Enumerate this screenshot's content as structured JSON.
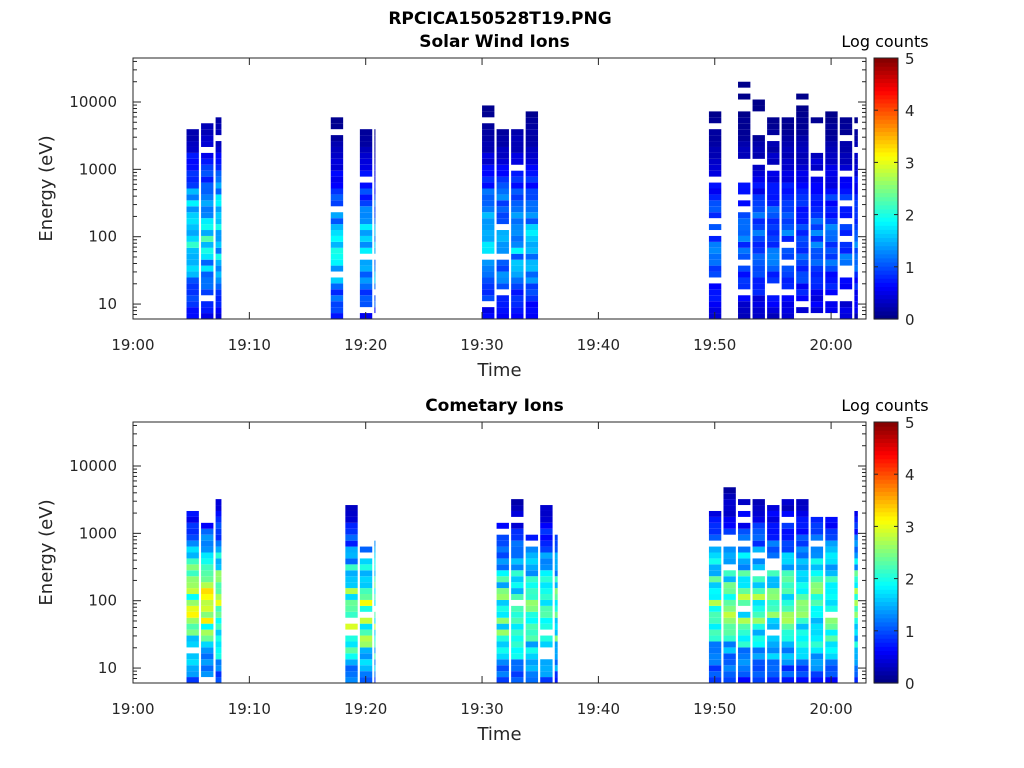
{
  "figure_title": "RPCICA150528T19.PNG",
  "chart_data": [
    {
      "type": "heatmap",
      "title": "Solar Wind Ions",
      "xlabel": "Time",
      "ylabel": "Energy (eV)",
      "yscale": "log",
      "xlim": [
        "19:00",
        "20:03"
      ],
      "ylim": [
        6,
        45000
      ],
      "xticks": [
        "19:00",
        "19:10",
        "19:20",
        "19:30",
        "19:40",
        "19:50",
        "20:00"
      ],
      "yticks": [
        "10",
        "100",
        "1000",
        "10000"
      ],
      "colorbar": {
        "label": "Log counts",
        "range": [
          0,
          5
        ],
        "ticks": [
          "0",
          "1",
          "2",
          "3",
          "4",
          "5"
        ],
        "colormap": "jet"
      },
      "bursts": [
        {
          "start_min": 4.6,
          "end_min": 7.6,
          "max_energy_ev": 6000,
          "peak_log_counts": 2.3,
          "peak_energy_ev": 100
        },
        {
          "start_min": 17.0,
          "end_min": 20.8,
          "max_energy_ev": 9000,
          "peak_log_counts": 2.0,
          "peak_energy_ev": 60
        },
        {
          "start_min": 30.0,
          "end_min": 36.5,
          "max_energy_ev": 9000,
          "peak_log_counts": 1.9,
          "peak_energy_ev": 80
        },
        {
          "start_min": 49.5,
          "end_min": 62.3,
          "max_energy_ev": 20000,
          "peak_log_counts": 1.4,
          "peak_energy_ev": 80
        }
      ],
      "grid": false
    },
    {
      "type": "heatmap",
      "title": "Cometary Ions",
      "xlabel": "Time",
      "ylabel": "Energy (eV)",
      "yscale": "log",
      "xlim": [
        "19:00",
        "20:03"
      ],
      "ylim": [
        6,
        45000
      ],
      "xticks": [
        "19:00",
        "19:10",
        "19:20",
        "19:30",
        "19:40",
        "19:50",
        "20:00"
      ],
      "yticks": [
        "10",
        "100",
        "1000",
        "10000"
      ],
      "colorbar": {
        "label": "Log counts",
        "range": [
          0,
          5
        ],
        "ticks": [
          "0",
          "1",
          "2",
          "3",
          "4",
          "5"
        ],
        "colormap": "jet"
      },
      "bursts": [
        {
          "start_min": 4.6,
          "end_min": 7.6,
          "max_energy_ev": 5000,
          "peak_log_counts": 3.4,
          "peak_energy_ev": 80
        },
        {
          "start_min": 17.0,
          "end_min": 20.8,
          "max_energy_ev": 2500,
          "peak_log_counts": 3.2,
          "peak_energy_ev": 60
        },
        {
          "start_min": 30.0,
          "end_min": 36.5,
          "max_energy_ev": 3000,
          "peak_log_counts": 2.9,
          "peak_energy_ev": 60
        },
        {
          "start_min": 49.5,
          "end_min": 62.3,
          "max_energy_ev": 5000,
          "peak_log_counts": 2.9,
          "peak_energy_ev": 80
        }
      ],
      "grid": false
    }
  ]
}
